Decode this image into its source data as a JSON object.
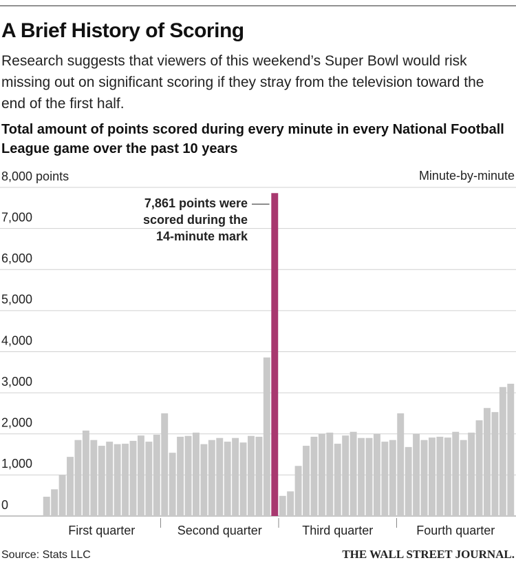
{
  "chart_data": {
    "type": "bar",
    "title": "A Brief History of Scoring",
    "subtitle": "Research suggests that viewers of this weekend’s Super Bowl would risk missing out on significant scoring if they stray from the television toward the end of the first half.",
    "chart_title": "Total amount of points scored during every minute in every National Football League game over the past 10 years",
    "x_label": "Minute-by-minute",
    "categories": [
      null,
      null,
      null,
      null,
      null,
      null,
      null,
      null,
      null,
      null,
      null,
      null,
      null,
      null,
      null,
      null,
      null,
      null,
      null,
      null,
      null,
      null,
      null,
      null,
      null,
      null,
      null,
      null,
      null,
      null,
      null,
      null,
      null,
      null,
      null,
      null,
      null,
      null,
      null,
      null,
      null,
      null,
      null,
      null,
      null,
      null,
      null,
      null,
      null,
      null,
      null,
      null,
      null,
      null,
      null,
      null,
      null,
      null,
      null,
      null
    ],
    "groups": [
      "First quarter",
      "Second quarter",
      "Third quarter",
      "Fourth quarter"
    ],
    "values": [
      470,
      650,
      1000,
      1440,
      1850,
      2080,
      1850,
      1710,
      1810,
      1750,
      1760,
      1830,
      1960,
      1810,
      1980,
      2500,
      1540,
      1930,
      1950,
      2030,
      1750,
      1850,
      1900,
      1810,
      1900,
      1790,
      1950,
      1930,
      3860,
      7861,
      490,
      600,
      1220,
      1710,
      1930,
      2000,
      2030,
      1760,
      1960,
      2050,
      1900,
      1900,
      2000,
      1810,
      1850,
      2500,
      1680,
      2000,
      1850,
      1910,
      1930,
      1910,
      2050,
      1850,
      2030,
      2330,
      2630,
      2530,
      3140,
      3220
    ],
    "color": "#c9c9c9",
    "highlight": {
      "index": 29,
      "color": "#a8386f"
    },
    "annotation": [
      "7,861 points were",
      "scored during the",
      "14-minute mark"
    ],
    "ylim": [
      0,
      8000
    ],
    "yticks": [
      0,
      {
        "value": 1000,
        "label": "1,000"
      },
      {
        "value": 2000,
        "label": "2,000"
      },
      {
        "value": 3000,
        "label": "3,000"
      },
      {
        "value": 4000,
        "label": "4,000"
      },
      {
        "value": 5000,
        "label": "5,000"
      },
      {
        "value": 6000,
        "label": "6,000"
      },
      {
        "value": 7000,
        "label": "7,000"
      },
      {
        "value": 8000,
        "label": "8,000 points"
      }
    ],
    "grid": true,
    "source": "Source: Stats LLC",
    "publisher": "THE WALL STREET JOURNAL."
  }
}
